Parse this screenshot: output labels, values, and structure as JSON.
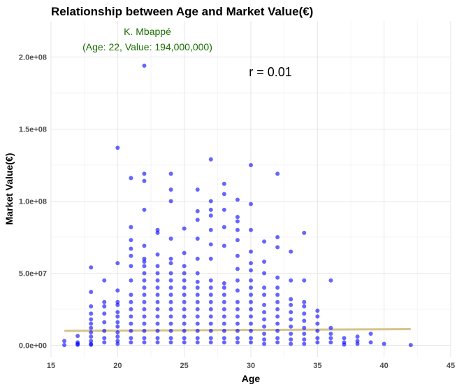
{
  "chart_data": {
    "type": "scatter",
    "title": "Relationship between Age and Market Value(€)",
    "xlabel": "Age",
    "ylabel": "Market Value(€)",
    "xlim": [
      15,
      45
    ],
    "ylim": [
      -8000000,
      225000000
    ],
    "x_ticks": [
      15,
      20,
      25,
      30,
      35,
      40,
      45
    ],
    "x_tick_labels": [
      "15",
      "20",
      "25",
      "30",
      "35",
      "40",
      "45"
    ],
    "y_ticks": [
      0,
      50000000,
      100000000,
      150000000,
      200000000
    ],
    "y_tick_labels": [
      "0.0e+00",
      "5.0e+07",
      "1.0e+08",
      "1.5e+08",
      "2.0e+08"
    ],
    "grid": true,
    "point_color": "#0000ff",
    "trend_color": "#d4c48a",
    "annotation_color": "#1a6e00",
    "series": [
      {
        "points": [
          [
            16,
            3000000
          ],
          [
            16,
            200000
          ],
          [
            17,
            6500000
          ],
          [
            17,
            2000000
          ],
          [
            17,
            1000000
          ],
          [
            17,
            300000
          ],
          [
            18,
            54000000
          ],
          [
            18,
            37000000
          ],
          [
            18,
            27000000
          ],
          [
            18,
            22000000
          ],
          [
            18,
            18000000
          ],
          [
            18,
            15000000
          ],
          [
            18,
            12000000
          ],
          [
            18,
            9000000
          ],
          [
            18,
            6000000
          ],
          [
            18,
            3000000
          ],
          [
            18,
            1000000
          ],
          [
            18,
            300000
          ],
          [
            19,
            45000000
          ],
          [
            19,
            30000000
          ],
          [
            19,
            27000000
          ],
          [
            19,
            22000000
          ],
          [
            19,
            16000000
          ],
          [
            19,
            10000000
          ],
          [
            19,
            5000000
          ],
          [
            19,
            2000000
          ],
          [
            20,
            137000000
          ],
          [
            20,
            57000000
          ],
          [
            20,
            38000000
          ],
          [
            20,
            30000000
          ],
          [
            20,
            28000000
          ],
          [
            20,
            23000000
          ],
          [
            20,
            20000000
          ],
          [
            20,
            16000000
          ],
          [
            20,
            13000000
          ],
          [
            20,
            9000000
          ],
          [
            20,
            6000000
          ],
          [
            20,
            3000000
          ],
          [
            20,
            1000000
          ],
          [
            21,
            116000000
          ],
          [
            21,
            82000000
          ],
          [
            21,
            73000000
          ],
          [
            21,
            67000000
          ],
          [
            21,
            62000000
          ],
          [
            21,
            55000000
          ],
          [
            21,
            45000000
          ],
          [
            21,
            35000000
          ],
          [
            21,
            30000000
          ],
          [
            21,
            25000000
          ],
          [
            21,
            20000000
          ],
          [
            21,
            15000000
          ],
          [
            21,
            10000000
          ],
          [
            21,
            5000000
          ],
          [
            21,
            2000000
          ],
          [
            22,
            194000000
          ],
          [
            22,
            119000000
          ],
          [
            22,
            114000000
          ],
          [
            22,
            94000000
          ],
          [
            22,
            69000000
          ],
          [
            22,
            60000000
          ],
          [
            22,
            58000000
          ],
          [
            22,
            55000000
          ],
          [
            22,
            50000000
          ],
          [
            22,
            45000000
          ],
          [
            22,
            40000000
          ],
          [
            22,
            35000000
          ],
          [
            22,
            30000000
          ],
          [
            22,
            25000000
          ],
          [
            22,
            20000000
          ],
          [
            22,
            15000000
          ],
          [
            22,
            10000000
          ],
          [
            22,
            5000000
          ],
          [
            22,
            2000000
          ],
          [
            23,
            80000000
          ],
          [
            23,
            78000000
          ],
          [
            23,
            63000000
          ],
          [
            23,
            55000000
          ],
          [
            23,
            50000000
          ],
          [
            23,
            45000000
          ],
          [
            23,
            40000000
          ],
          [
            23,
            35000000
          ],
          [
            23,
            30000000
          ],
          [
            23,
            25000000
          ],
          [
            23,
            20000000
          ],
          [
            23,
            15000000
          ],
          [
            23,
            10000000
          ],
          [
            23,
            5000000
          ],
          [
            23,
            2000000
          ],
          [
            24,
            119000000
          ],
          [
            24,
            108000000
          ],
          [
            24,
            100000000
          ],
          [
            24,
            74000000
          ],
          [
            24,
            60000000
          ],
          [
            24,
            57000000
          ],
          [
            24,
            50000000
          ],
          [
            24,
            45000000
          ],
          [
            24,
            40000000
          ],
          [
            24,
            35000000
          ],
          [
            24,
            30000000
          ],
          [
            24,
            25000000
          ],
          [
            24,
            20000000
          ],
          [
            24,
            15000000
          ],
          [
            24,
            10000000
          ],
          [
            24,
            5000000
          ],
          [
            24,
            2000000
          ],
          [
            25,
            81000000
          ],
          [
            25,
            64000000
          ],
          [
            25,
            55000000
          ],
          [
            25,
            50000000
          ],
          [
            25,
            45000000
          ],
          [
            25,
            40000000
          ],
          [
            25,
            35000000
          ],
          [
            25,
            30000000
          ],
          [
            25,
            25000000
          ],
          [
            25,
            20000000
          ],
          [
            25,
            15000000
          ],
          [
            25,
            10000000
          ],
          [
            25,
            5000000
          ],
          [
            25,
            2000000
          ],
          [
            26,
            108000000
          ],
          [
            26,
            93000000
          ],
          [
            26,
            87000000
          ],
          [
            26,
            74000000
          ],
          [
            26,
            60000000
          ],
          [
            26,
            50000000
          ],
          [
            26,
            44000000
          ],
          [
            26,
            40000000
          ],
          [
            26,
            35000000
          ],
          [
            26,
            30000000
          ],
          [
            26,
            25000000
          ],
          [
            26,
            20000000
          ],
          [
            26,
            15000000
          ],
          [
            26,
            10000000
          ],
          [
            26,
            5000000
          ],
          [
            26,
            2000000
          ],
          [
            27,
            129000000
          ],
          [
            27,
            100000000
          ],
          [
            27,
            94000000
          ],
          [
            27,
            90000000
          ],
          [
            27,
            80000000
          ],
          [
            27,
            70000000
          ],
          [
            27,
            60000000
          ],
          [
            27,
            45000000
          ],
          [
            27,
            40000000
          ],
          [
            27,
            35000000
          ],
          [
            27,
            30000000
          ],
          [
            27,
            25000000
          ],
          [
            27,
            20000000
          ],
          [
            27,
            15000000
          ],
          [
            27,
            10000000
          ],
          [
            27,
            5000000
          ],
          [
            27,
            2000000
          ],
          [
            28,
            112000000
          ],
          [
            28,
            105000000
          ],
          [
            28,
            94000000
          ],
          [
            28,
            82000000
          ],
          [
            28,
            69000000
          ],
          [
            28,
            43000000
          ],
          [
            28,
            40000000
          ],
          [
            28,
            35000000
          ],
          [
            28,
            30000000
          ],
          [
            28,
            25000000
          ],
          [
            28,
            20000000
          ],
          [
            28,
            15000000
          ],
          [
            28,
            10000000
          ],
          [
            28,
            5000000
          ],
          [
            28,
            2000000
          ],
          [
            29,
            101000000
          ],
          [
            29,
            89000000
          ],
          [
            29,
            86000000
          ],
          [
            29,
            80000000
          ],
          [
            29,
            73000000
          ],
          [
            29,
            62000000
          ],
          [
            29,
            53000000
          ],
          [
            29,
            45000000
          ],
          [
            29,
            38000000
          ],
          [
            29,
            30000000
          ],
          [
            29,
            25000000
          ],
          [
            29,
            20000000
          ],
          [
            29,
            15000000
          ],
          [
            29,
            10000000
          ],
          [
            29,
            5000000
          ],
          [
            29,
            2000000
          ],
          [
            30,
            125000000
          ],
          [
            30,
            98000000
          ],
          [
            30,
            80000000
          ],
          [
            30,
            65000000
          ],
          [
            30,
            57000000
          ],
          [
            30,
            52000000
          ],
          [
            30,
            45000000
          ],
          [
            30,
            40000000
          ],
          [
            30,
            35000000
          ],
          [
            30,
            30000000
          ],
          [
            30,
            25000000
          ],
          [
            30,
            20000000
          ],
          [
            30,
            15000000
          ],
          [
            30,
            10000000
          ],
          [
            30,
            5000000
          ],
          [
            30,
            2000000
          ],
          [
            31,
            72000000
          ],
          [
            31,
            58000000
          ],
          [
            31,
            50000000
          ],
          [
            31,
            40000000
          ],
          [
            31,
            35000000
          ],
          [
            31,
            28000000
          ],
          [
            31,
            23000000
          ],
          [
            31,
            18000000
          ],
          [
            31,
            13000000
          ],
          [
            31,
            8000000
          ],
          [
            31,
            4000000
          ],
          [
            31,
            1000000
          ],
          [
            32,
            119000000
          ],
          [
            32,
            75000000
          ],
          [
            32,
            68000000
          ],
          [
            32,
            47000000
          ],
          [
            32,
            40000000
          ],
          [
            32,
            35000000
          ],
          [
            32,
            30000000
          ],
          [
            32,
            25000000
          ],
          [
            32,
            20000000
          ],
          [
            32,
            15000000
          ],
          [
            32,
            10000000
          ],
          [
            32,
            5000000
          ],
          [
            32,
            2000000
          ],
          [
            33,
            65000000
          ],
          [
            33,
            45000000
          ],
          [
            33,
            32000000
          ],
          [
            33,
            28000000
          ],
          [
            33,
            23000000
          ],
          [
            33,
            18000000
          ],
          [
            33,
            13000000
          ],
          [
            33,
            8000000
          ],
          [
            33,
            4000000
          ],
          [
            33,
            1000000
          ],
          [
            34,
            78000000
          ],
          [
            34,
            45000000
          ],
          [
            34,
            30000000
          ],
          [
            34,
            27000000
          ],
          [
            34,
            22000000
          ],
          [
            34,
            17000000
          ],
          [
            34,
            12000000
          ],
          [
            34,
            8000000
          ],
          [
            34,
            4000000
          ],
          [
            34,
            1000000
          ],
          [
            35,
            24000000
          ],
          [
            35,
            20000000
          ],
          [
            35,
            15000000
          ],
          [
            35,
            10000000
          ],
          [
            35,
            5000000
          ],
          [
            35,
            2000000
          ],
          [
            36,
            45000000
          ],
          [
            36,
            12000000
          ],
          [
            36,
            8000000
          ],
          [
            36,
            5000000
          ],
          [
            36,
            2000000
          ],
          [
            37,
            5000000
          ],
          [
            37,
            2000000
          ],
          [
            37,
            500000
          ],
          [
            38,
            6000000
          ],
          [
            38,
            3000000
          ],
          [
            38,
            1000000
          ],
          [
            39,
            8000000
          ],
          [
            39,
            2000000
          ],
          [
            40,
            1000000
          ],
          [
            42,
            200000
          ]
        ]
      }
    ],
    "trend_line": {
      "x": [
        16,
        42
      ],
      "y": [
        10000000,
        11200000
      ]
    },
    "annotations": [
      {
        "label": "K. Mbappé",
        "detail": "(Age: 22, Value: 194,000,000)",
        "x": 22,
        "y": 194000000
      },
      {
        "label": "r = 0.01"
      }
    ]
  }
}
